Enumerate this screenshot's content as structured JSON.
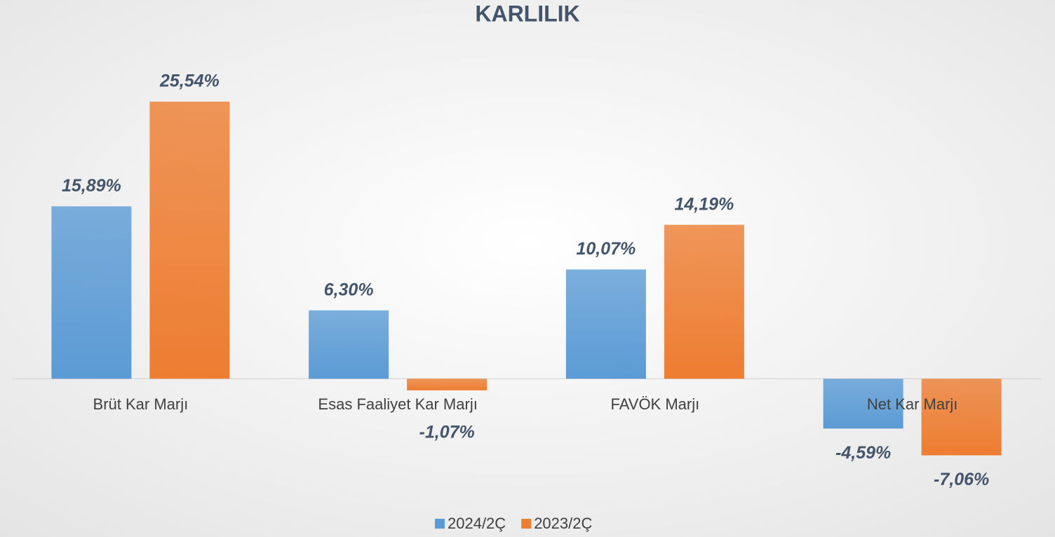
{
  "chart_data": {
    "type": "bar",
    "title": "KARLILIK",
    "categories": [
      "Brüt Kar Marjı",
      "Esas Faaliyet Kar Marjı",
      "FAVÖK Marjı",
      "Net Kar Marjı"
    ],
    "series": [
      {
        "name": "2024/2Ç",
        "color": "#5b9bd5",
        "values": [
          15.89,
          6.3,
          10.07,
          -4.59
        ],
        "value_labels": [
          "15,89%",
          "6,30%",
          "10,07%",
          "-4,59%"
        ]
      },
      {
        "name": "2023/2Ç",
        "color": "#ed7d31",
        "values": [
          25.54,
          -1.07,
          14.19,
          -7.06
        ],
        "value_labels": [
          "25,54%",
          "-1,07%",
          "14,19%",
          "-7,06%"
        ]
      }
    ],
    "ylim": [
      -10,
      30
    ],
    "grid": false,
    "legend": "bottom"
  }
}
